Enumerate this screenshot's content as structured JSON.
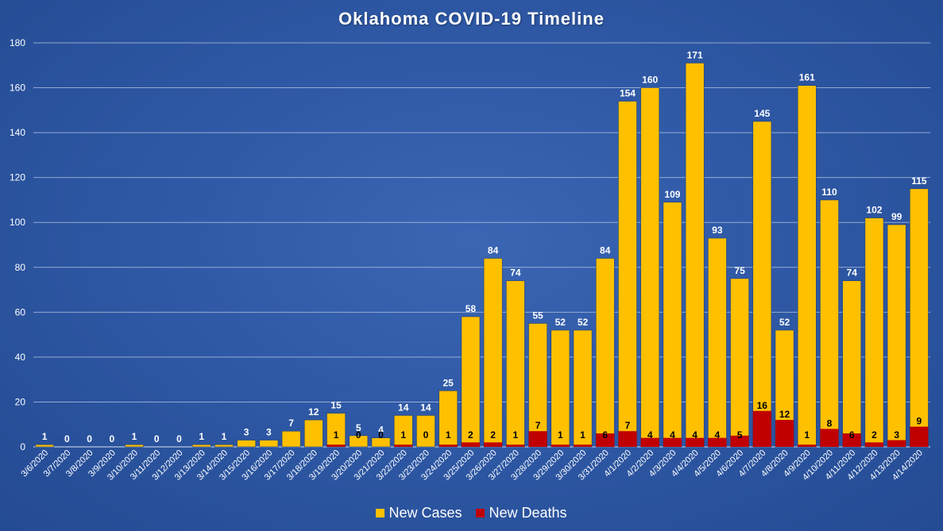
{
  "chart_data": {
    "type": "bar",
    "title": "Oklahoma COVID-19 Timeline",
    "xlabel": "",
    "ylabel": "",
    "ylim": [
      0,
      180
    ],
    "yticks": [
      "0",
      "20",
      "40",
      "60",
      "80",
      "100",
      "120",
      "140",
      "160",
      "180"
    ],
    "grid": true,
    "legend_position": "bottom",
    "categories": [
      "3/6/2020",
      "3/7/2020",
      "3/8/2020",
      "3/9/2020",
      "3/10/2020",
      "3/11/2020",
      "3/12/2020",
      "3/13/2020",
      "3/14/2020",
      "3/15/2020",
      "3/16/2020",
      "3/17/2020",
      "3/18/2020",
      "3/19/2020",
      "3/20/2020",
      "3/21/2020",
      "3/22/2020",
      "3/23/2020",
      "3/24/2020",
      "3/25/2020",
      "3/26/2020",
      "3/27/2020",
      "3/28/2020",
      "3/29/2020",
      "3/30/2020",
      "3/31/2020",
      "4/1/2020",
      "4/2/2020",
      "4/3/2020",
      "4/4/2020",
      "4/5/2020",
      "4/6/2020",
      "4/7/2020",
      "4/8/2020",
      "4/9/2020",
      "4/10/2020",
      "4/11/2020",
      "4/12/2020",
      "4/13/2020",
      "4/14/2020"
    ],
    "series": [
      {
        "name": "New Cases",
        "color": "#ffc000",
        "values": [
          1,
          0,
          0,
          0,
          1,
          0,
          0,
          1,
          1,
          3,
          3,
          7,
          12,
          15,
          5,
          4,
          14,
          14,
          25,
          58,
          84,
          74,
          55,
          52,
          52,
          84,
          154,
          160,
          109,
          171,
          93,
          75,
          145,
          52,
          161,
          110,
          74,
          102,
          99,
          115
        ]
      },
      {
        "name": "New Deaths",
        "color": "#c00000",
        "values": [
          null,
          null,
          null,
          null,
          null,
          null,
          null,
          null,
          null,
          null,
          null,
          null,
          null,
          1,
          0,
          0,
          1,
          0,
          1,
          2,
          2,
          1,
          7,
          1,
          1,
          6,
          7,
          4,
          4,
          4,
          4,
          5,
          16,
          12,
          1,
          8,
          6,
          2,
          3,
          9
        ]
      }
    ]
  }
}
